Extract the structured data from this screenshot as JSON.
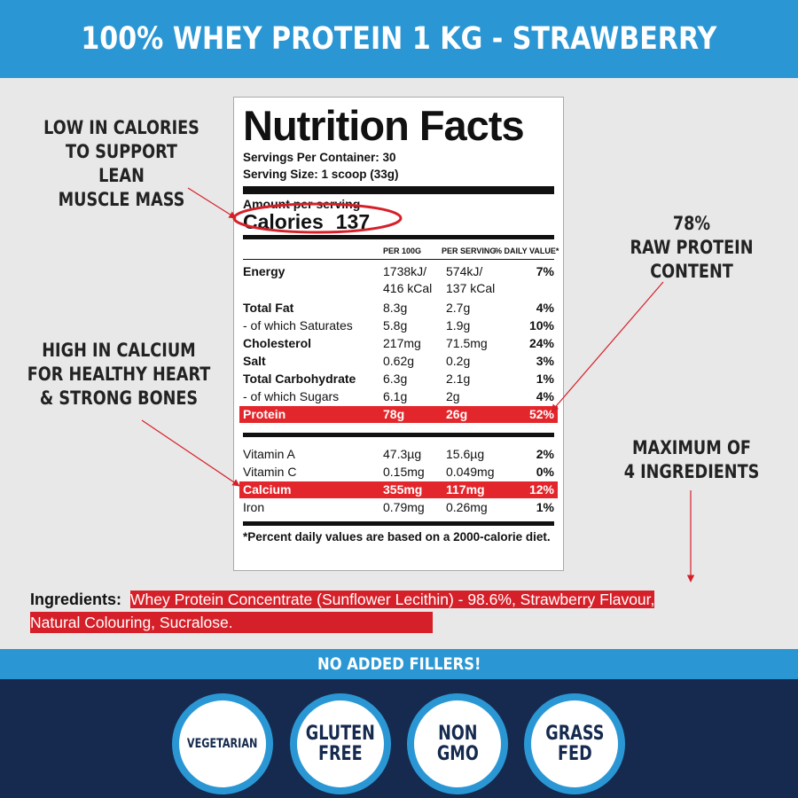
{
  "title": "100% WHEY PROTEIN 1 KG - STRAWBERRY",
  "callouts": {
    "low_calories": "LOW IN CALORIES\nTO SUPPORT LEAN\nMUSCLE MASS",
    "calcium": "HIGH IN CALCIUM\nFOR HEALTHY HEART\n& STRONG BONES",
    "protein": "78%\nRAW PROTEIN\nCONTENT",
    "ingredients_max": "MAXIMUM OF\n4 INGREDIENTS"
  },
  "label": {
    "heading": "Nutrition Facts",
    "servings_per_container": "Servings Per Container: 30",
    "serving_size": "Serving Size: 1 scoop (33g)",
    "amount_per_serving": "Amount per serving",
    "calories_label": "Calories",
    "calories_value": "137",
    "columns": [
      "PER 100G",
      "PER SERVING",
      "% DAILY VALUE*"
    ],
    "energy": {
      "name": "Energy",
      "per100_1": "1738kJ/",
      "per100_2": "416 kCal",
      "serv_1": "574kJ/",
      "serv_2": "137 kCal",
      "dv": "7%"
    },
    "rows": [
      {
        "name": "Total Fat",
        "per100": "8.3g",
        "serving": "2.7g",
        "dv": "4%"
      },
      {
        "name": "- of which Saturates",
        "per100": "5.8g",
        "serving": "1.9g",
        "dv": "10%"
      },
      {
        "name": "Cholesterol",
        "per100": "217mg",
        "serving": "71.5mg",
        "dv": "24%"
      },
      {
        "name": "Salt",
        "per100": "0.62g",
        "serving": "0.2g",
        "dv": "3%"
      },
      {
        "name": "Total Carbohydrate",
        "per100": "6.3g",
        "serving": "2.1g",
        "dv": "1%"
      },
      {
        "name": "- of which Sugars",
        "per100": "6.1g",
        "serving": "2g",
        "dv": "4%"
      },
      {
        "name": "Protein",
        "per100": "78g",
        "serving": "26g",
        "dv": "52%"
      }
    ],
    "vitamins": [
      {
        "name": "Vitamin A",
        "per100": "47.3µg",
        "serving": "15.6µg",
        "dv": "2%"
      },
      {
        "name": "Vitamin C",
        "per100": "0.15mg",
        "serving": "0.049mg",
        "dv": "0%"
      },
      {
        "name": "Calcium",
        "per100": "355mg",
        "serving": "117mg",
        "dv": "12%"
      },
      {
        "name": "Iron",
        "per100": "0.79mg",
        "serving": "0.26mg",
        "dv": "1%"
      }
    ],
    "footnote": "*Percent daily values are based on a 2000-calorie diet."
  },
  "ingredients": {
    "label": "Ingredients:",
    "line1": "Whey Protein Concentrate (Sunflower Lecithin) - 98.6%, Strawberry Flavour,",
    "line2": "Natural Colouring, Sucralose."
  },
  "fillers_text": "NO ADDED FILLERS!",
  "badges": [
    "VEGETARIAN",
    "GLUTEN\nFREE",
    "NON\nGMO",
    "GRASS\nFED"
  ],
  "colors": {
    "accent_blue": "#2a97d4",
    "navy": "#152a4e",
    "highlight_red": "#e3262b"
  }
}
